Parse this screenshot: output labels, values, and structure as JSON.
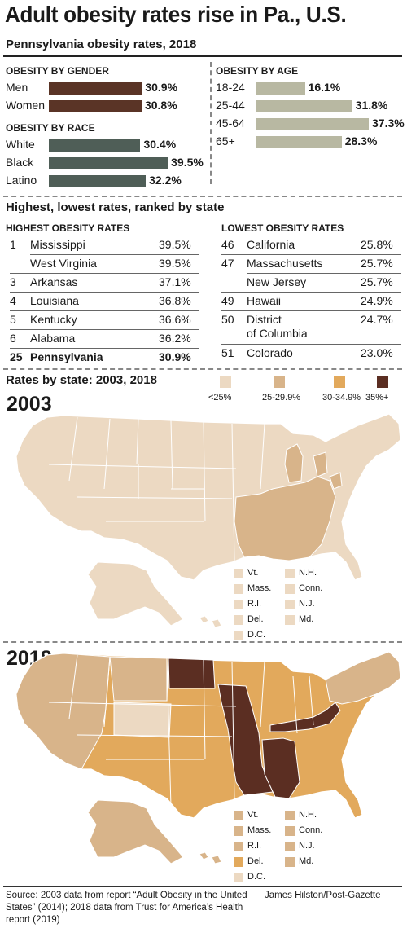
{
  "title": "Adult obesity rates rise in Pa., U.S.",
  "subtitle": "Pennsylvania obesity rates, 2018",
  "chart_data": [
    {
      "type": "bar",
      "title": "OBESITY BY GENDER",
      "categories": [
        "Men",
        "Women"
      ],
      "values": [
        30.9,
        30.8
      ],
      "labels": [
        "30.9%",
        "30.8%"
      ],
      "color": "#5a3426"
    },
    {
      "type": "bar",
      "title": "OBESITY BY RACE",
      "categories": [
        "White",
        "Black",
        "Latino"
      ],
      "values": [
        30.4,
        39.5,
        32.2
      ],
      "labels": [
        "30.4%",
        "39.5%",
        "32.2%"
      ],
      "color": "#4f5e57"
    },
    {
      "type": "bar",
      "title": "OBESITY BY AGE",
      "categories": [
        "18-24",
        "25-44",
        "45-64",
        "65+"
      ],
      "values": [
        16.1,
        31.8,
        37.3,
        28.3
      ],
      "labels": [
        "16.1%",
        "31.8%",
        "37.3%",
        "28.3%"
      ],
      "color": "#b8b8a2"
    }
  ],
  "rankings": {
    "title": "Highest, lowest rates, ranked by state",
    "highest": {
      "heading": "HIGHEST OBESITY RATES",
      "rows": [
        {
          "rank": "1",
          "state": "Mississippi",
          "rate": "39.5%"
        },
        {
          "rank": "",
          "state": "West Virginia",
          "rate": "39.5%"
        },
        {
          "rank": "3",
          "state": "Arkansas",
          "rate": "37.1%"
        },
        {
          "rank": "4",
          "state": "Louisiana",
          "rate": "36.8%"
        },
        {
          "rank": "5",
          "state": "Kentucky",
          "rate": "36.6%"
        },
        {
          "rank": "6",
          "state": "Alabama",
          "rate": "36.2%"
        },
        {
          "rank": "25",
          "state": "Pennsylvania",
          "rate": "30.9%"
        }
      ]
    },
    "lowest": {
      "heading": "LOWEST OBESITY RATES",
      "rows": [
        {
          "rank": "46",
          "state": "California",
          "state2": "",
          "rate": "25.8%"
        },
        {
          "rank": "47",
          "state": "Massachusetts",
          "state2": "",
          "rate": "25.7%"
        },
        {
          "rank": "",
          "state": "New Jersey",
          "state2": "",
          "rate": "25.7%"
        },
        {
          "rank": "49",
          "state": "Hawaii",
          "state2": "",
          "rate": "24.9%"
        },
        {
          "rank": "50",
          "state": "District",
          "state2": "of Columbia",
          "rate": "24.7%"
        },
        {
          "rank": "51",
          "state": "Colorado",
          "state2": "",
          "rate": "23.0%"
        }
      ]
    }
  },
  "maps": {
    "title": "Rates by state: 2003, 2018",
    "legend": [
      {
        "label": "<25%",
        "color": "#ecd9c2"
      },
      {
        "label": "25-29.9%",
        "color": "#d8b48a"
      },
      {
        "label": "30-34.9%",
        "color": "#e2a95c"
      },
      {
        "label": "35%+",
        "color": "#5b2e22"
      }
    ],
    "map2003": {
      "year": "2003",
      "small_states": [
        {
          "label": "Vt.",
          "color": "#ecd9c2"
        },
        {
          "label": "N.H.",
          "color": "#ecd9c2"
        },
        {
          "label": "Mass.",
          "color": "#ecd9c2"
        },
        {
          "label": "Conn.",
          "color": "#ecd9c2"
        },
        {
          "label": "R.I.",
          "color": "#ecd9c2"
        },
        {
          "label": "N.J.",
          "color": "#ecd9c2"
        },
        {
          "label": "Del.",
          "color": "#ecd9c2"
        },
        {
          "label": "Md.",
          "color": "#ecd9c2"
        },
        {
          "label": "D.C.",
          "color": "#ecd9c2"
        }
      ]
    },
    "map2018": {
      "year": "2018",
      "small_states": [
        {
          "label": "Vt.",
          "color": "#d8b48a"
        },
        {
          "label": "N.H.",
          "color": "#d8b48a"
        },
        {
          "label": "Mass.",
          "color": "#d8b48a"
        },
        {
          "label": "Conn.",
          "color": "#d8b48a"
        },
        {
          "label": "R.I.",
          "color": "#d8b48a"
        },
        {
          "label": "N.J.",
          "color": "#d8b48a"
        },
        {
          "label": "Del.",
          "color": "#e2a95c"
        },
        {
          "label": "Md.",
          "color": "#d8b48a"
        },
        {
          "label": "D.C.",
          "color": "#ecd9c2"
        }
      ]
    }
  },
  "source": "Source: 2003 data from report “Adult Obesity in the United States” (2014); 2018 data from Trust for America’s Health report (2019)",
  "credit": "James Hilston/Post-Gazette"
}
